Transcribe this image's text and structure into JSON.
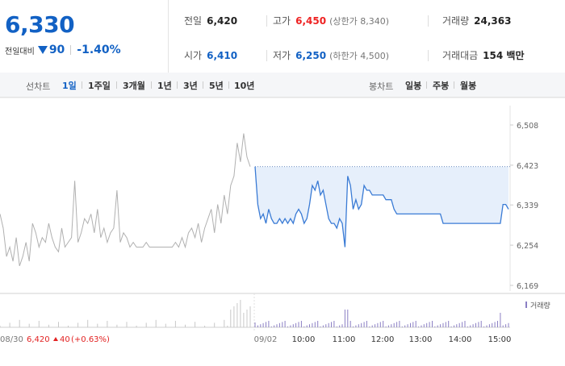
{
  "price": {
    "current": "6,330",
    "change_label": "전일대비",
    "change_abs": "90",
    "change_pct": "-1.40%",
    "direction": "down"
  },
  "stats": {
    "prev_close_label": "전일",
    "prev_close": "6,420",
    "high_label": "고가",
    "high": "6,450",
    "upper_limit": "(상한가 8,340)",
    "volume_label": "거래량",
    "volume": "24,363",
    "open_label": "시가",
    "open": "6,410",
    "low_label": "저가",
    "low": "6,250",
    "lower_limit": "(하한가 4,500)",
    "value_label": "거래대금",
    "value": "154 백만"
  },
  "tabs": {
    "line_title": "선차트",
    "line": [
      "1일",
      "1주일",
      "3개월",
      "1년",
      "3년",
      "5년",
      "10년"
    ],
    "line_active": 0,
    "candle_title": "봉차트",
    "candle": [
      "일봉",
      "주봉",
      "월봉"
    ]
  },
  "colors": {
    "down": "#1261c4",
    "up": "#e22222",
    "prev_line": "#b0b0b0",
    "area_fill": "#e6effb"
  },
  "chart_data": {
    "type": "line",
    "y_ticks": [
      "6,508",
      "6,423",
      "6,339",
      "6,254",
      "6,169"
    ],
    "ylim": [
      6169,
      6508
    ],
    "x_ticks": [
      "09/02",
      "10:00",
      "11:00",
      "12:00",
      "13:00",
      "14:00",
      "15:00"
    ],
    "reference_price": 6420,
    "previous_day": {
      "label": "08/30",
      "values": [
        6320,
        6290,
        6230,
        6250,
        6220,
        6270,
        6210,
        6230,
        6260,
        6220,
        6300,
        6280,
        6250,
        6270,
        6260,
        6300,
        6270,
        6250,
        6240,
        6290,
        6250,
        6260,
        6270,
        6390,
        6260,
        6280,
        6310,
        6300,
        6320,
        6280,
        6330,
        6270,
        6290,
        6260,
        6280,
        6290,
        6370,
        6260,
        6280,
        6270,
        6250,
        6260,
        6250,
        6250,
        6250,
        6260,
        6250,
        6250,
        6250,
        6250,
        6250,
        6250,
        6250,
        6250,
        6260,
        6250,
        6270,
        6250,
        6280,
        6290,
        6270,
        6300,
        6260,
        6290,
        6310,
        6330,
        6280,
        6340,
        6300,
        6360,
        6320,
        6380,
        6400,
        6470,
        6430,
        6490,
        6440,
        6420
      ]
    },
    "series": [
      {
        "values": [
          6420,
          6340,
          6310,
          6320,
          6300,
          6330,
          6310,
          6300,
          6300,
          6310,
          6300,
          6310,
          6300,
          6310,
          6300,
          6320,
          6330,
          6320,
          6300,
          6310,
          6340,
          6380,
          6370,
          6390,
          6360,
          6370,
          6340,
          6310,
          6300,
          6300,
          6290,
          6310,
          6300,
          6250,
          6400,
          6380,
          6330,
          6350,
          6330,
          6340,
          6380,
          6370,
          6370,
          6360,
          6360,
          6360,
          6360,
          6360,
          6350,
          6350,
          6350,
          6330,
          6320,
          6320,
          6320,
          6320,
          6320,
          6320,
          6320,
          6320,
          6320,
          6320,
          6320,
          6320,
          6320,
          6320,
          6320,
          6320,
          6320,
          6300,
          6300,
          6300,
          6300,
          6300,
          6300,
          6300,
          6300,
          6300,
          6300,
          6300,
          6300,
          6300,
          6300,
          6300,
          6300,
          6300,
          6300,
          6300,
          6300,
          6300,
          6300,
          6340,
          6340,
          6330
        ]
      }
    ],
    "volume_label": "거래량",
    "footer": {
      "date": "08/30",
      "close": "6,420",
      "change": "40",
      "change_pct": "(+0.63%)"
    }
  }
}
